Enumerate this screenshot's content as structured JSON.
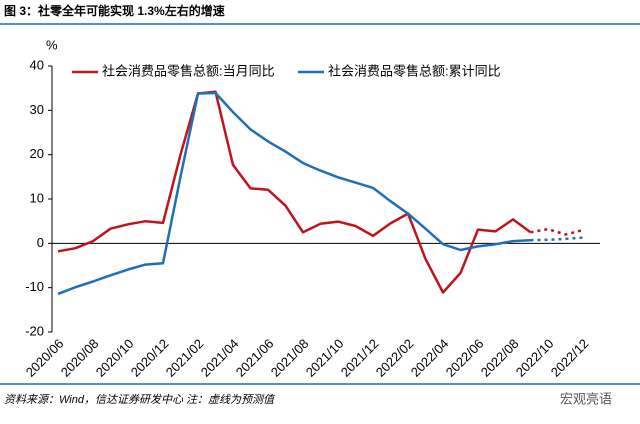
{
  "title": "图 3：社零全年可能实现 1.3%左右的增速",
  "source": "资料来源：Wind，信达证券研发中心   注：虚线为预测值",
  "watermark": "宏观亮语",
  "chart_data": {
    "type": "line",
    "y_unit": "%",
    "categories": [
      "2020/06",
      null,
      "2020/08",
      null,
      "2020/10",
      null,
      "2020/12",
      null,
      "2021/02",
      null,
      "2021/04",
      null,
      "2021/06",
      null,
      "2021/08",
      null,
      "2021/10",
      null,
      "2021/12",
      null,
      "2022/02",
      null,
      "2022/04",
      null,
      "2022/06",
      null,
      "2022/08",
      null,
      "2022/10",
      null,
      "2022/12"
    ],
    "series": [
      {
        "name": "社会消费品零售总额:当月同比",
        "color": "#c0141c",
        "values": [
          -1.8,
          -1.1,
          0.5,
          3.3,
          4.3,
          5.0,
          4.6,
          20,
          33.8,
          34.2,
          17.7,
          12.4,
          12.1,
          8.5,
          2.5,
          4.4,
          4.9,
          3.9,
          1.7,
          4.5,
          6.7,
          -3.5,
          -11.1,
          -6.7,
          3.1,
          2.7,
          5.4,
          2.5,
          null,
          null,
          null
        ],
        "forecast_values": [
          null,
          null,
          null,
          null,
          null,
          null,
          null,
          null,
          null,
          null,
          null,
          null,
          null,
          null,
          null,
          null,
          null,
          null,
          null,
          null,
          null,
          null,
          null,
          null,
          null,
          null,
          null,
          2.5,
          3.2,
          2.0,
          3.0
        ]
      },
      {
        "name": "社会消费品零售总额:累计同比",
        "color": "#1f6fb8",
        "values": [
          -11.4,
          -9.9,
          -8.6,
          -7.2,
          -5.9,
          -4.8,
          -4.5,
          15,
          33.8,
          33.9,
          29.6,
          25.7,
          23.0,
          20.7,
          18.1,
          16.4,
          14.9,
          13.7,
          12.5,
          9.5,
          6.7,
          3.3,
          -0.2,
          -1.5,
          -0.7,
          -0.2,
          0.5,
          0.7,
          null,
          null,
          null
        ],
        "forecast_values": [
          null,
          null,
          null,
          null,
          null,
          null,
          null,
          null,
          null,
          null,
          null,
          null,
          null,
          null,
          null,
          null,
          null,
          null,
          null,
          null,
          null,
          null,
          null,
          null,
          null,
          null,
          null,
          0.7,
          0.8,
          1.0,
          1.3
        ]
      }
    ],
    "ylim": [
      -20,
      40
    ],
    "yticks": [
      -20,
      -10,
      0,
      10,
      20,
      30,
      40
    ],
    "grid": false
  }
}
